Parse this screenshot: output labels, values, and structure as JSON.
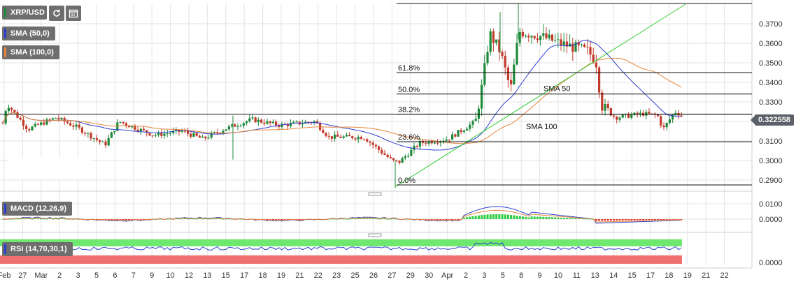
{
  "toolbar": {
    "symbol": "XRP/USD",
    "refresh_icon": "refresh-icon",
    "calendar_icon": "calendar-icon"
  },
  "indicators": {
    "sma50": {
      "label": "SMA (50,0)",
      "color": "#2b3fcf"
    },
    "sma100": {
      "label": "SMA (100,0)",
      "color": "#e8853a"
    },
    "macd": {
      "label": "MACD (12,26,9)",
      "color": "#2b3fcf"
    },
    "rsi": {
      "label": "RSI (14,70,30,1)",
      "color": "#2b3fcf"
    }
  },
  "chart_data": {
    "type": "candlestick",
    "symbol": "XRP/USD",
    "last_price": "0.322558",
    "price_axis": {
      "min": 0.285,
      "max": 0.38,
      "ticks": [
        "0.3700",
        "0.3600",
        "0.3500",
        "0.3400",
        "0.3300",
        "0.3200",
        "0.3100",
        "0.3000",
        "0.2900"
      ]
    },
    "date_axis": {
      "labels": [
        "Feb",
        "27",
        "Mar",
        "2",
        "3",
        "5",
        "6",
        "7",
        "9",
        "10",
        "12",
        "13",
        "15",
        "17",
        "18",
        "19",
        "21",
        "22",
        "23",
        "25",
        "26",
        "27",
        "29",
        "30",
        "Apr",
        "2",
        "3",
        "5",
        "8",
        "9",
        "10",
        "11",
        "13",
        "14",
        "15",
        "17",
        "18",
        "19",
        "21",
        "22"
      ]
    },
    "fibonacci": [
      {
        "label": "61.8%",
        "price": 0.345
      },
      {
        "label": "50.0%",
        "price": 0.334
      },
      {
        "label": "38.2%",
        "price": 0.3237
      },
      {
        "label": "23.6%",
        "price": 0.3096
      },
      {
        "label": "0.0%",
        "price": 0.2875
      }
    ],
    "annotations": [
      "SMA 50",
      "SMA 100"
    ],
    "macd_axis": {
      "ticks": [
        "0.0100",
        "0.0000"
      ]
    },
    "rsi_axis": {
      "ticks": [
        "0.0000"
      ]
    },
    "colors": {
      "up": "#1e8a3a",
      "down": "#c33a2a",
      "trend": "#33cc33",
      "grid": "#e3e3e3"
    }
  }
}
